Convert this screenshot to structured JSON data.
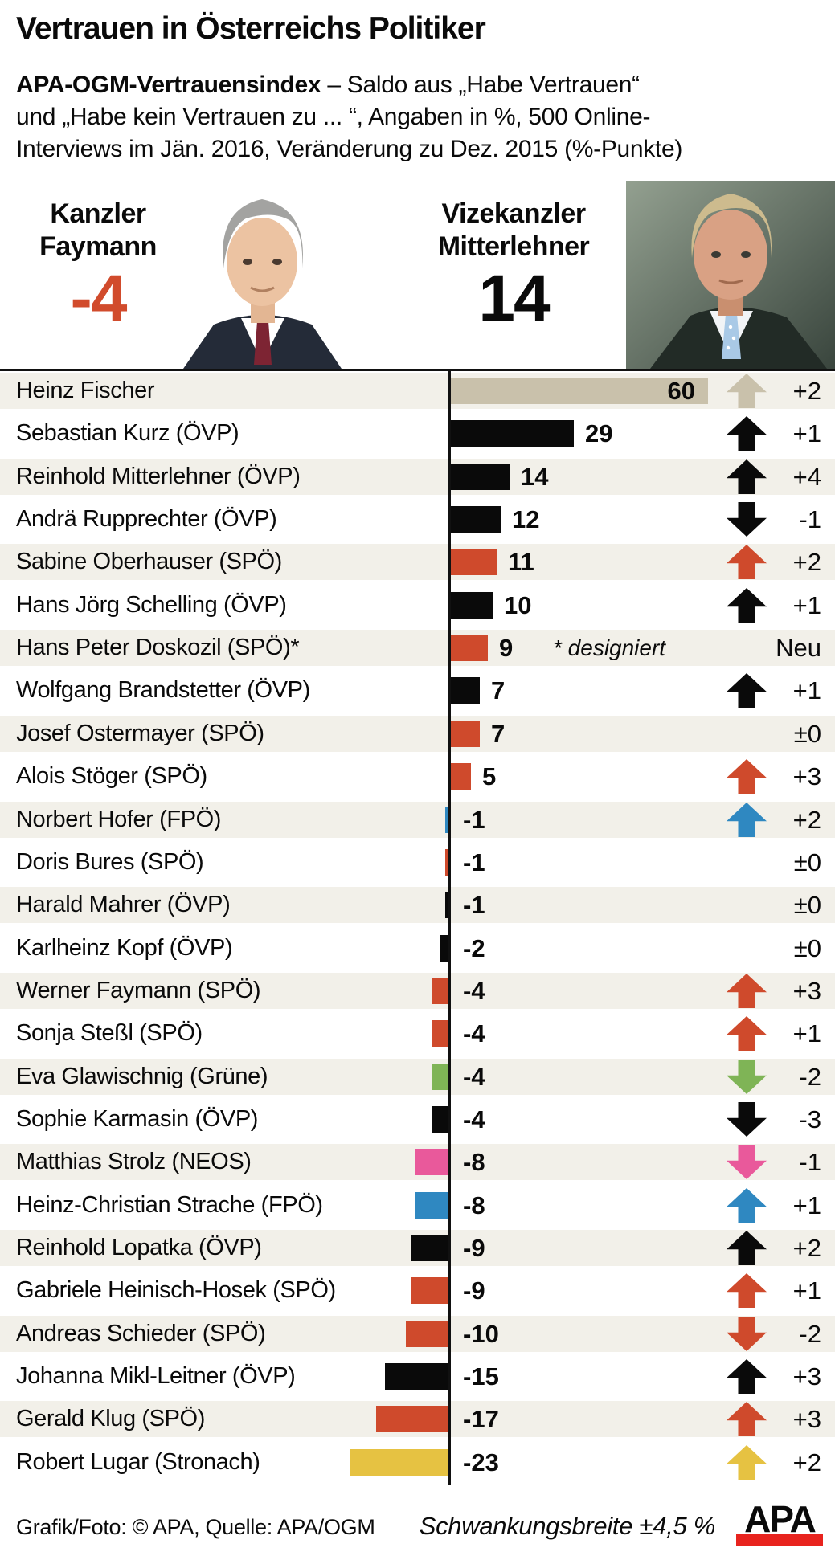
{
  "title": "Vertrauen in Österreichs Politiker",
  "subtitle": {
    "bold": "APA-OGM-Vertrauensindex",
    "line1_rest": " – Saldo aus „Habe Vertrauen“",
    "line2": "und „Habe kein Vertrauen zu ... “, Angaben in %, 500 Online-",
    "line3": "Interviews im Jän. 2016, Veränderung zu Dez. 2015 (%-Punkte)"
  },
  "leaders": {
    "left": {
      "role": "Kanzler",
      "name": "Faymann",
      "value": "-4"
    },
    "right": {
      "role": "Vizekanzler",
      "name": "Mitterlehner",
      "value": "14"
    }
  },
  "colors": {
    "spoe_red": "#cf4a2c",
    "oevp_black": "#0a0a0a",
    "fischer_beige": "#c9c1ab",
    "fpoe_blue": "#2f88c1",
    "gruene_green": "#7fb456",
    "neos_pink": "#e9599b",
    "stronach_yellow": "#e6c242",
    "row_bg": "#f2f0e9",
    "accent_red": "#d14b2c",
    "logo_red": "#e8231e"
  },
  "chart_data": {
    "type": "bar",
    "orientation": "horizontal",
    "value_unit": "%",
    "change_unit": "%-Punkte",
    "xlim": [
      -25,
      62
    ],
    "categories": [
      "Heinz Fischer",
      "Sebastian Kurz (ÖVP)",
      "Reinhold Mitterlehner (ÖVP)",
      "Andrä Rupprechter (ÖVP)",
      "Sabine Oberhauser (SPÖ)",
      "Hans Jörg Schelling (ÖVP)",
      "Hans Peter Doskozil (SPÖ)*",
      "Wolfgang Brandstetter (ÖVP)",
      "Josef Ostermayer (SPÖ)",
      "Alois Stöger (SPÖ)",
      "Norbert Hofer (FPÖ)",
      "Doris Bures (SPÖ)",
      "Harald Mahrer (ÖVP)",
      "Karlheinz Kopf (ÖVP)",
      "Werner Faymann (SPÖ)",
      "Sonja Steßl (SPÖ)",
      "Eva Glawischnig (Grüne)",
      "Sophie Karmasin (ÖVP)",
      "Matthias Strolz (NEOS)",
      "Heinz-Christian Strache (FPÖ)",
      "Reinhold Lopatka (ÖVP)",
      "Gabriele Heinisch-Hosek (SPÖ)",
      "Andreas Schieder (SPÖ)",
      "Johanna Mikl-Leitner (ÖVP)",
      "Gerald Klug (SPÖ)",
      "Robert Lugar (Stronach)"
    ],
    "values": [
      60,
      29,
      14,
      12,
      11,
      10,
      9,
      7,
      7,
      5,
      -1,
      -1,
      -1,
      -2,
      -4,
      -4,
      -4,
      -4,
      -8,
      -8,
      -9,
      -9,
      -10,
      -15,
      -17,
      -23
    ],
    "changes": [
      "+2",
      "+1",
      "+4",
      "-1",
      "+2",
      "+1",
      "Neu",
      "+1",
      "±0",
      "+3",
      "+2",
      "±0",
      "±0",
      "±0",
      "+3",
      "+1",
      "-2",
      "-3",
      "-1",
      "+1",
      "+2",
      "+1",
      "-2",
      "+3",
      "+3",
      "+2"
    ],
    "rows": [
      {
        "name": "Heinz Fischer",
        "value": 60,
        "label": "60",
        "color": "fischer_beige",
        "arrow": "up",
        "arrow_color": "fischer_beige",
        "change": "+2",
        "label_inside": true
      },
      {
        "name": "Sebastian Kurz (ÖVP)",
        "value": 29,
        "label": "29",
        "color": "oevp_black",
        "arrow": "up",
        "arrow_color": "oevp_black",
        "change": "+1"
      },
      {
        "name": "Reinhold Mitterlehner (ÖVP)",
        "value": 14,
        "label": "14",
        "color": "oevp_black",
        "arrow": "up",
        "arrow_color": "oevp_black",
        "change": "+4"
      },
      {
        "name": "Andrä Rupprechter (ÖVP)",
        "value": 12,
        "label": "12",
        "color": "oevp_black",
        "arrow": "down",
        "arrow_color": "oevp_black",
        "change": "-1"
      },
      {
        "name": "Sabine Oberhauser (SPÖ)",
        "value": 11,
        "label": "11",
        "color": "spoe_red",
        "arrow": "up",
        "arrow_color": "spoe_red",
        "change": "+2"
      },
      {
        "name": "Hans Jörg Schelling (ÖVP)",
        "value": 10,
        "label": "10",
        "color": "oevp_black",
        "arrow": "up",
        "arrow_color": "oevp_black",
        "change": "+1"
      },
      {
        "name": "Hans Peter Doskozil (SPÖ)*",
        "value": 9,
        "label": "9",
        "color": "spoe_red",
        "arrow": null,
        "change": "Neu",
        "note": "* designiert"
      },
      {
        "name": "Wolfgang Brandstetter (ÖVP)",
        "value": 7,
        "label": "7",
        "color": "oevp_black",
        "arrow": "up",
        "arrow_color": "oevp_black",
        "change": "+1"
      },
      {
        "name": "Josef Ostermayer (SPÖ)",
        "value": 7,
        "label": "7",
        "color": "spoe_red",
        "arrow": null,
        "change": "±0"
      },
      {
        "name": "Alois Stöger (SPÖ)",
        "value": 5,
        "label": "5",
        "color": "spoe_red",
        "arrow": "up",
        "arrow_color": "spoe_red",
        "change": "+3"
      },
      {
        "name": "Norbert Hofer (FPÖ)",
        "value": -1,
        "label": "-1",
        "color": "fpoe_blue",
        "arrow": "up",
        "arrow_color": "fpoe_blue",
        "change": "+2"
      },
      {
        "name": "Doris Bures (SPÖ)",
        "value": -1,
        "label": "-1",
        "color": "spoe_red",
        "arrow": null,
        "change": "±0"
      },
      {
        "name": "Harald Mahrer (ÖVP)",
        "value": -1,
        "label": "-1",
        "color": "oevp_black",
        "arrow": null,
        "change": "±0"
      },
      {
        "name": "Karlheinz Kopf (ÖVP)",
        "value": -2,
        "label": "-2",
        "color": "oevp_black",
        "arrow": null,
        "change": "±0"
      },
      {
        "name": "Werner Faymann (SPÖ)",
        "value": -4,
        "label": "-4",
        "color": "spoe_red",
        "arrow": "up",
        "arrow_color": "spoe_red",
        "change": "+3"
      },
      {
        "name": "Sonja Steßl (SPÖ)",
        "value": -4,
        "label": "-4",
        "color": "spoe_red",
        "arrow": "up",
        "arrow_color": "spoe_red",
        "change": "+1"
      },
      {
        "name": "Eva Glawischnig (Grüne)",
        "value": -4,
        "label": "-4",
        "color": "gruene_green",
        "arrow": "down",
        "arrow_color": "gruene_green",
        "change": "-2"
      },
      {
        "name": "Sophie Karmasin (ÖVP)",
        "value": -4,
        "label": "-4",
        "color": "oevp_black",
        "arrow": "down",
        "arrow_color": "oevp_black",
        "change": "-3"
      },
      {
        "name": "Matthias Strolz (NEOS)",
        "value": -8,
        "label": "-8",
        "color": "neos_pink",
        "arrow": "down",
        "arrow_color": "neos_pink",
        "change": "-1"
      },
      {
        "name": "Heinz-Christian Strache (FPÖ)",
        "value": -8,
        "label": "-8",
        "color": "fpoe_blue",
        "arrow": "up",
        "arrow_color": "fpoe_blue",
        "change": "+1"
      },
      {
        "name": "Reinhold Lopatka (ÖVP)",
        "value": -9,
        "label": "-9",
        "color": "oevp_black",
        "arrow": "up",
        "arrow_color": "oevp_black",
        "change": "+2"
      },
      {
        "name": "Gabriele Heinisch-Hosek (SPÖ)",
        "value": -9,
        "label": "-9",
        "color": "spoe_red",
        "arrow": "up",
        "arrow_color": "spoe_red",
        "change": "+1"
      },
      {
        "name": "Andreas Schieder (SPÖ)",
        "value": -10,
        "label": "-10",
        "color": "spoe_red",
        "arrow": "down",
        "arrow_color": "spoe_red",
        "change": "-2"
      },
      {
        "name": "Johanna Mikl-Leitner (ÖVP)",
        "value": -15,
        "label": "-15",
        "color": "oevp_black",
        "arrow": "up",
        "arrow_color": "oevp_black",
        "change": "+3"
      },
      {
        "name": "Gerald Klug (SPÖ)",
        "value": -17,
        "label": "-17",
        "color": "spoe_red",
        "arrow": "up",
        "arrow_color": "spoe_red",
        "change": "+3"
      },
      {
        "name": "Robert Lugar (Stronach)",
        "value": -23,
        "label": "-23",
        "color": "stronach_yellow",
        "arrow": "up",
        "arrow_color": "stronach_yellow",
        "change": "+2"
      }
    ]
  },
  "footer": {
    "credit": "Grafik/Foto: © APA, Quelle: APA/OGM",
    "note": "Schwankungsbreite ±4,5 %",
    "logo": "APA"
  }
}
